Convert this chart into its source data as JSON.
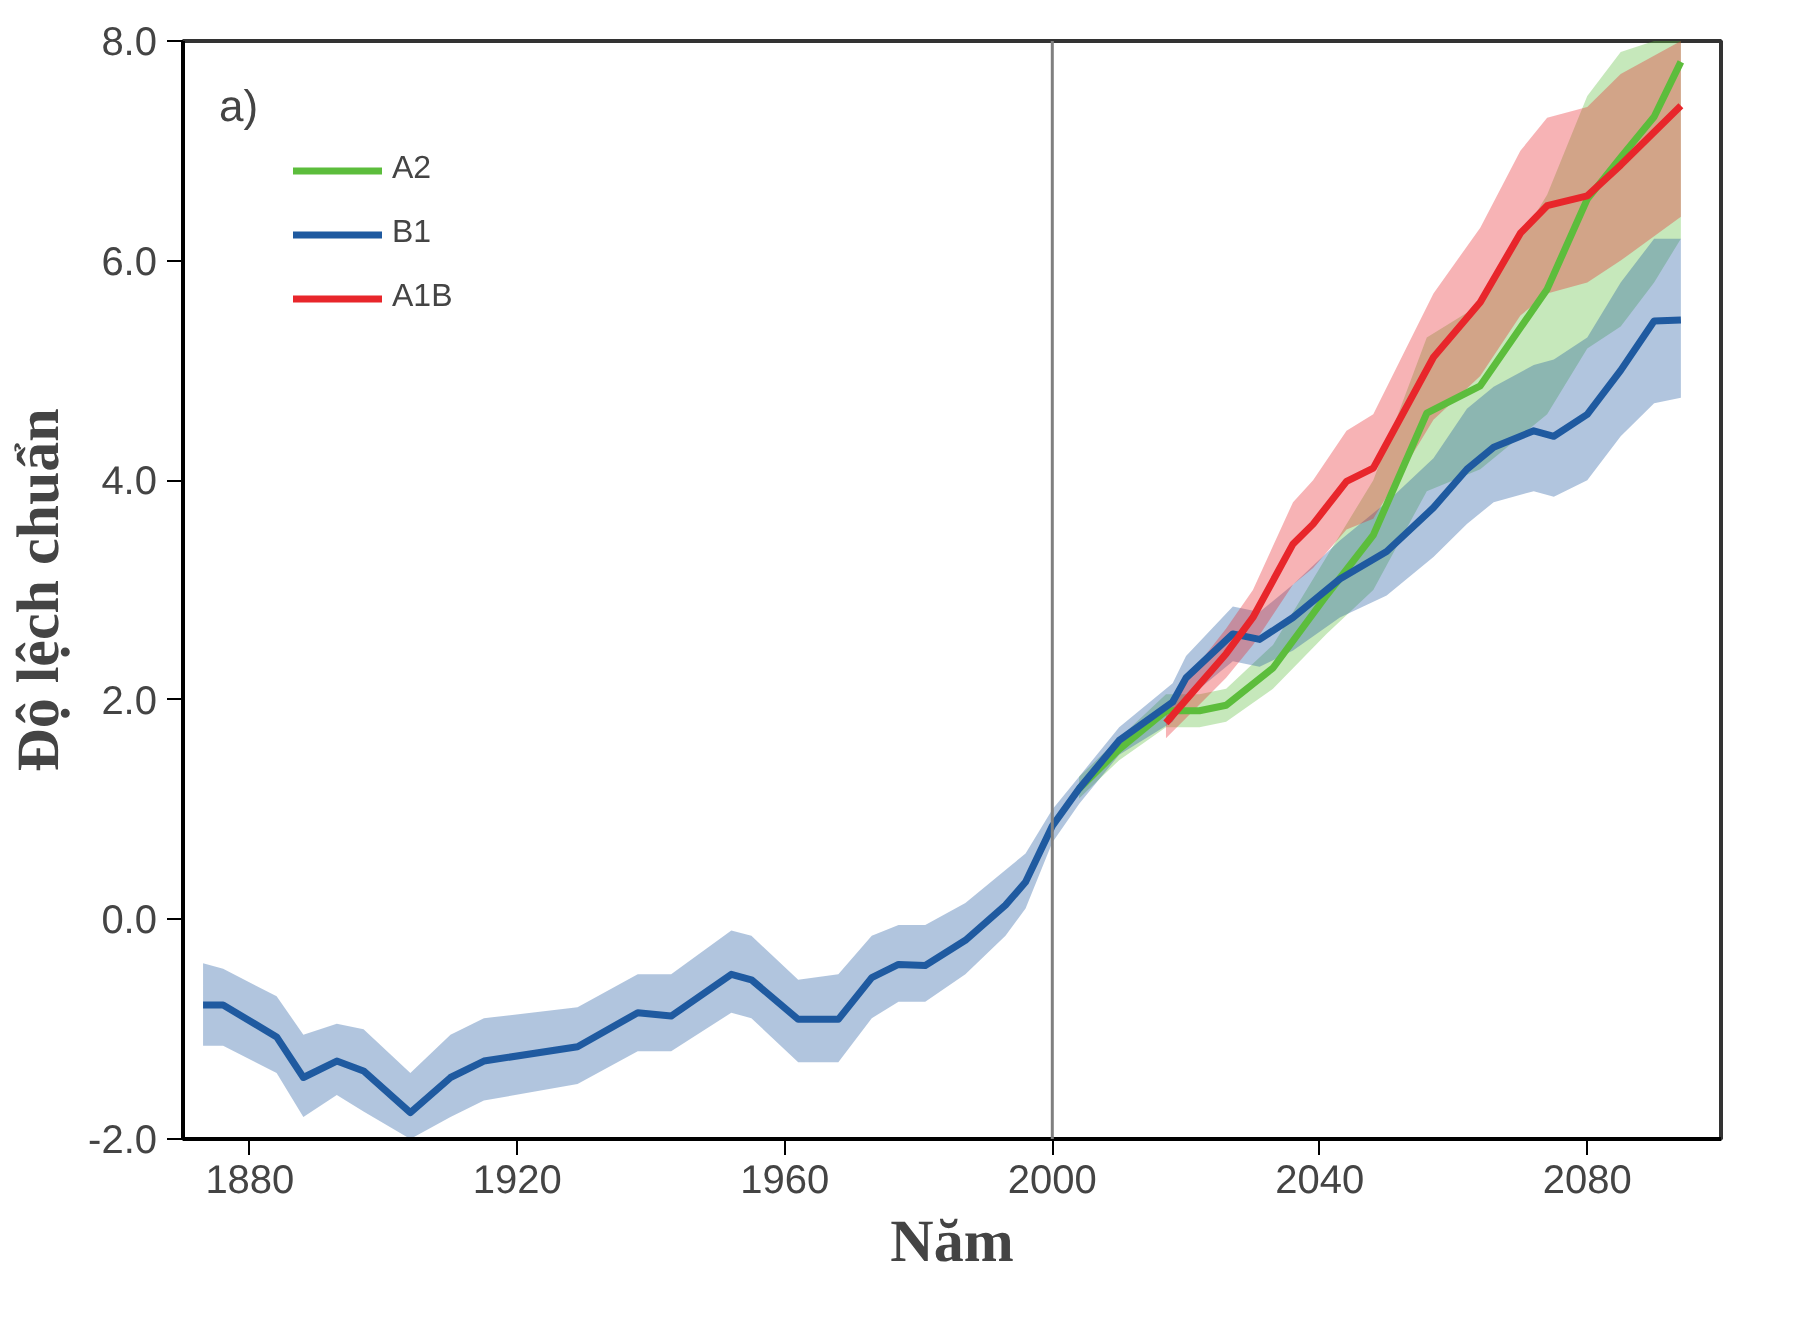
{
  "chart_data": {
    "type": "line",
    "xlabel": "Năm",
    "ylabel": "Độ lệch chuẩn",
    "xlim": [
      1870,
      2100
    ],
    "ylim": [
      -2,
      8
    ],
    "xticks": [
      1880,
      1920,
      1960,
      2000,
      2040,
      2080
    ],
    "yticks": [
      {
        "value": -2,
        "label": "-2.0"
      },
      {
        "value": 0,
        "label": "0.0"
      },
      {
        "value": 2,
        "label": "2.0"
      },
      {
        "value": 4,
        "label": "4.0"
      },
      {
        "value": 6,
        "label": "6.0"
      },
      {
        "value": 8,
        "label": "8.0"
      }
    ],
    "grid": false,
    "legend": "top left",
    "line_style": "solid",
    "marker": "none",
    "annotations": [
      "a)"
    ],
    "ref_lines": [
      {
        "axis": "x",
        "value": 2000,
        "label": null,
        "color": "#808080"
      }
    ],
    "series": [
      {
        "name": "A2",
        "color": "#5cbd3c",
        "x": [
          2004,
          2010,
          2017,
          2022,
          2026,
          2033,
          2041,
          2048,
          2056,
          2064,
          2074,
          2080,
          2085,
          2090,
          2094
        ],
        "values": [
          1.19,
          1.55,
          1.9,
          1.9,
          1.95,
          2.29,
          2.95,
          3.5,
          4.61,
          4.86,
          5.74,
          6.56,
          6.94,
          7.31,
          7.81
        ],
        "lower": [
          1.1,
          1.45,
          1.75,
          1.75,
          1.8,
          2.1,
          2.6,
          3.0,
          3.9,
          4.1,
          4.6,
          5.2,
          5.4,
          5.8,
          6.2
        ],
        "upper": [
          1.3,
          1.65,
          2.05,
          2.05,
          2.1,
          2.5,
          3.3,
          4.0,
          5.3,
          5.6,
          6.6,
          7.5,
          7.9,
          8.0,
          8.0
        ]
      },
      {
        "name": "B1",
        "color": "#1f5aa0",
        "x": [
          1873,
          1876,
          1884,
          1888,
          1893,
          1897,
          1904,
          1910,
          1915,
          1929,
          1938,
          1943,
          1952,
          1955,
          1962,
          1968,
          1973,
          1977,
          1981,
          1987,
          1993,
          1996,
          2000,
          2004,
          2010,
          2018,
          2020,
          2027,
          2031,
          2036,
          2043,
          2050,
          2057,
          2062,
          2066,
          2072,
          2075,
          2080,
          2085,
          2090,
          2094
        ],
        "values": [
          -0.78,
          -0.78,
          -1.07,
          -1.44,
          -1.29,
          -1.38,
          -1.76,
          -1.44,
          -1.29,
          -1.16,
          -0.85,
          -0.88,
          -0.5,
          -0.55,
          -0.91,
          -0.91,
          -0.53,
          -0.41,
          -0.42,
          -0.19,
          0.13,
          0.34,
          0.85,
          1.19,
          1.63,
          1.98,
          2.2,
          2.6,
          2.55,
          2.75,
          3.1,
          3.35,
          3.75,
          4.1,
          4.3,
          4.45,
          4.4,
          4.6,
          5.0,
          5.45,
          5.46
        ],
        "lower": [
          -1.15,
          -1.15,
          -1.4,
          -1.8,
          -1.6,
          -1.75,
          -2.0,
          -1.8,
          -1.65,
          -1.5,
          -1.2,
          -1.2,
          -0.85,
          -0.9,
          -1.3,
          -1.3,
          -0.9,
          -0.75,
          -0.75,
          -0.5,
          -0.15,
          0.1,
          0.7,
          1.05,
          1.5,
          1.8,
          2.0,
          2.35,
          2.3,
          2.45,
          2.75,
          2.95,
          3.3,
          3.6,
          3.8,
          3.9,
          3.85,
          4.0,
          4.4,
          4.7,
          4.75
        ],
        "upper": [
          -0.4,
          -0.45,
          -0.7,
          -1.05,
          -0.95,
          -1.0,
          -1.4,
          -1.05,
          -0.9,
          -0.8,
          -0.5,
          -0.5,
          -0.1,
          -0.15,
          -0.55,
          -0.5,
          -0.15,
          -0.05,
          -0.05,
          0.15,
          0.45,
          0.6,
          1.0,
          1.3,
          1.75,
          2.15,
          2.4,
          2.85,
          2.8,
          3.05,
          3.45,
          3.8,
          4.2,
          4.65,
          4.85,
          5.05,
          5.1,
          5.3,
          5.8,
          6.2,
          6.2
        ]
      },
      {
        "name": "A1B",
        "color": "#e8262b",
        "x": [
          2017,
          2026,
          2030,
          2036,
          2039,
          2044,
          2048,
          2057,
          2064,
          2070,
          2074,
          2080,
          2085,
          2094
        ],
        "values": [
          1.79,
          2.42,
          2.75,
          3.42,
          3.6,
          3.99,
          4.11,
          5.12,
          5.62,
          6.25,
          6.5,
          6.59,
          6.87,
          7.41
        ],
        "lower": [
          1.65,
          2.2,
          2.5,
          3.05,
          3.2,
          3.55,
          3.65,
          4.55,
          4.95,
          5.5,
          5.7,
          5.8,
          6.0,
          6.4
        ],
        "upper": [
          1.95,
          2.65,
          3.0,
          3.8,
          4.0,
          4.45,
          4.6,
          5.7,
          6.3,
          7.0,
          7.3,
          7.4,
          7.7,
          8.0
        ]
      }
    ]
  }
}
